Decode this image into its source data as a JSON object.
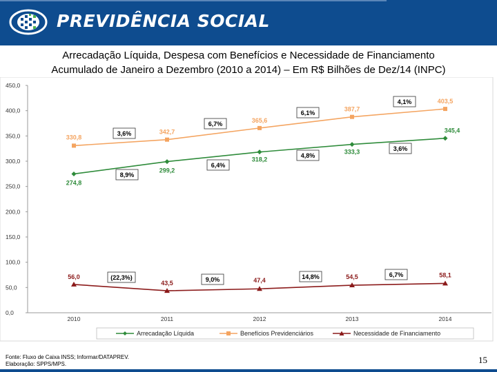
{
  "header": {
    "brand": "PREVIDÊNCIA SOCIAL",
    "logo_icon": "previdencia-logo-icon"
  },
  "title": {
    "line1": "Arrecadação Líquida, Despesa com Benefícios e Necessidade de Financiamento",
    "line2": "Acumulado de Janeiro a Dezembro (2010 a 2014) – Em R$ Bilhões de Dez/14 (INPC)"
  },
  "chart_data": {
    "type": "line",
    "categories": [
      "2010",
      "2011",
      "2012",
      "2013",
      "2014"
    ],
    "ylim": [
      0,
      450
    ],
    "yticks": [
      "0,0",
      "50,0",
      "100,0",
      "150,0",
      "200,0",
      "250,0",
      "300,0",
      "350,0",
      "400,0",
      "450,0"
    ],
    "grid": false,
    "legend_position": "bottom",
    "series": [
      {
        "name": "Arrecadação Líquida",
        "color": "#2e8b3a",
        "marker": "diamond",
        "values": [
          274.8,
          299.2,
          318.2,
          333.3,
          345.4
        ],
        "labels": [
          "274,8",
          "299,2",
          "318,2",
          "333,3",
          "345,4"
        ],
        "growth": [
          "8,9%",
          "6,4%",
          "4,8%",
          "3,6%"
        ]
      },
      {
        "name": "Benefícios Previdenciários",
        "color": "#f4a460",
        "marker": "square",
        "values": [
          330.8,
          342.7,
          365.6,
          387.7,
          403.5
        ],
        "labels": [
          "330,8",
          "342,7",
          "365,6",
          "387,7",
          "403,5"
        ],
        "growth": [
          "3,6%",
          "6,7%",
          "6,1%",
          "4,1%"
        ]
      },
      {
        "name": "Necessidade de Financiamento",
        "color": "#8b1a1a",
        "marker": "triangle",
        "values": [
          56.0,
          43.5,
          47.4,
          54.5,
          58.1
        ],
        "labels": [
          "56,0",
          "43,5",
          "47,4",
          "54,5",
          "58,1"
        ],
        "growth": [
          "(22,3%)",
          "9,0%",
          "14,8%",
          "6,7%"
        ]
      }
    ]
  },
  "footer": {
    "source": "Fonte: Fluxo de Caixa INSS; Informar/DATAPREV.",
    "elaboration": "Elaboração: SPPS/MPS.",
    "page": "15"
  }
}
